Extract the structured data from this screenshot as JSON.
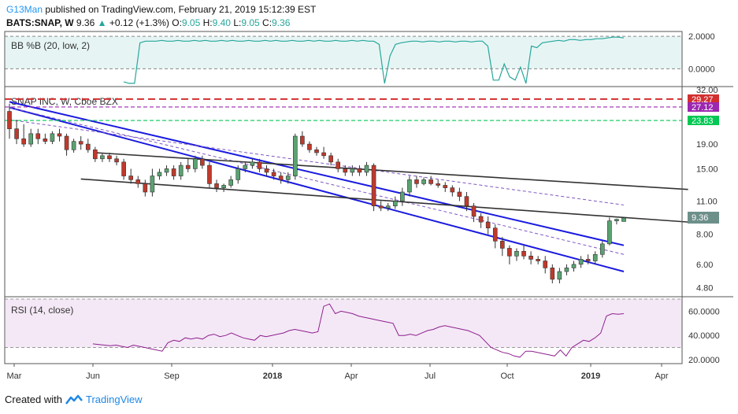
{
  "header": {
    "author": "G13Man",
    "published_text": "published on TradingView.com, February 21, 2019 15:12:39 EST",
    "symbol": "BATS:SNAP, W",
    "last": "9.36",
    "change_arrow": "▲",
    "change": "+0.12 (+1.3%)",
    "o_label": "O:",
    "o_val": "9.05",
    "h_label": "H:",
    "h_val": "9.40",
    "l_label": "L:",
    "l_val": "9.05",
    "c_label": "C:",
    "c_val": "9.36"
  },
  "footer": {
    "created_with": "Created with",
    "brand": "TradingView"
  },
  "chart_data": [
    {
      "type": "line",
      "title": "BB %B (20, low, 2)",
      "y_ticks": [
        "2.0000",
        "0.0000"
      ],
      "ylim": [
        -1,
        2.2
      ],
      "values": [
        -0.8,
        -0.9,
        -0.9,
        1.6,
        1.7,
        1.7,
        1.7,
        1.75,
        1.7,
        1.7,
        1.75,
        1.7,
        1.7,
        1.75,
        1.7,
        1.75,
        1.7,
        1.7,
        1.75,
        1.7,
        1.75,
        1.7,
        1.7,
        1.75,
        1.7,
        1.7,
        1.75,
        1.7,
        1.75,
        1.7,
        1.7,
        1.75,
        1.7,
        1.7,
        1.75,
        1.7,
        1.75,
        1.7,
        1.7,
        1.75,
        1.7,
        1.7,
        1.75,
        1.7,
        1.75,
        1.7,
        1.7,
        1.5,
        -0.9,
        0.8,
        1.5,
        1.6,
        1.65,
        1.7,
        1.7,
        1.65,
        1.7,
        1.7,
        1.65,
        1.7,
        1.7,
        1.65,
        1.7,
        1.7,
        1.65,
        1.7,
        1.7,
        1.4,
        -0.7,
        -0.7,
        0.3,
        -0.5,
        -0.7,
        0.1,
        -0.9,
        1.4,
        1.3,
        1.6,
        1.65,
        1.7,
        1.75,
        1.7,
        1.8,
        1.8,
        1.75,
        1.8,
        1.8,
        1.85,
        1.85,
        1.9,
        1.95,
        1.95,
        1.9
      ]
    },
    {
      "type": "candlestick",
      "title": "SNAP INC, W, Cboe BZX",
      "y_ticks": [
        "32.00",
        "19.00",
        "15.00",
        "11.00",
        "8.00",
        "6.00",
        "4.80"
      ],
      "price_labels": [
        "29.27",
        "27.12",
        "23.83",
        "9.36"
      ],
      "x_ticks": [
        "Mar",
        "Jun",
        "Sep",
        "2018",
        "Apr",
        "Jul",
        "Oct",
        "2019",
        "Apr"
      ],
      "candles": [
        [
          26,
          28,
          20,
          22
        ],
        [
          22,
          24,
          19,
          20
        ],
        [
          20,
          23,
          18.5,
          19
        ],
        [
          19,
          22,
          18.5,
          21
        ],
        [
          21,
          22,
          19,
          20
        ],
        [
          20,
          21,
          19,
          19.5
        ],
        [
          19.5,
          21.5,
          19,
          21
        ],
        [
          21,
          22,
          19.5,
          20.5
        ],
        [
          20.5,
          21,
          17,
          18
        ],
        [
          18,
          20,
          17.5,
          19.5
        ],
        [
          19.5,
          20.5,
          18,
          19
        ],
        [
          19,
          20,
          17.5,
          18
        ],
        [
          18,
          18.5,
          16,
          16.5
        ],
        [
          16.5,
          17.5,
          16,
          17
        ],
        [
          17,
          17.5,
          16,
          16.5
        ],
        [
          16.5,
          17,
          15.5,
          16
        ],
        [
          16,
          16.5,
          13.5,
          14
        ],
        [
          14,
          15,
          13,
          13.5
        ],
        [
          13.5,
          14,
          12.5,
          13
        ],
        [
          13,
          13.5,
          11.5,
          12
        ],
        [
          12,
          15,
          11.5,
          14
        ],
        [
          14,
          15,
          13.5,
          14.5
        ],
        [
          14.5,
          15.5,
          14,
          15
        ],
        [
          15,
          15.5,
          13.5,
          14
        ],
        [
          14,
          16,
          13.5,
          15.5
        ],
        [
          15.5,
          16.5,
          14.5,
          15
        ],
        [
          15,
          17,
          14.5,
          16.5
        ],
        [
          16.5,
          17,
          15,
          15.5
        ],
        [
          15.5,
          16,
          12.5,
          13
        ],
        [
          13,
          13.5,
          12,
          12.5
        ],
        [
          12.5,
          13,
          12,
          12.8
        ],
        [
          12.8,
          14,
          12.5,
          13.5
        ],
        [
          13.5,
          15.5,
          13,
          15
        ],
        [
          15,
          16,
          14.5,
          15.5
        ],
        [
          15.5,
          16.5,
          15,
          16
        ],
        [
          16,
          16.5,
          14.5,
          15
        ],
        [
          15,
          15.5,
          14,
          14.5
        ],
        [
          14.5,
          15,
          13.5,
          14
        ],
        [
          14,
          14.5,
          13,
          13.5
        ],
        [
          13.5,
          14.5,
          13,
          14
        ],
        [
          14,
          21,
          13.5,
          20.5
        ],
        [
          20.5,
          21.5,
          18.5,
          19
        ],
        [
          19,
          19.5,
          17.5,
          18
        ],
        [
          18,
          18.5,
          17,
          17.5
        ],
        [
          17.5,
          18.5,
          16.5,
          17
        ],
        [
          17,
          17.5,
          15.5,
          16
        ],
        [
          16,
          16.5,
          14.5,
          15
        ],
        [
          15,
          15.5,
          14,
          14.5
        ],
        [
          14.5,
          15.5,
          14,
          15
        ],
        [
          15,
          15.5,
          14,
          14.5
        ],
        [
          14.5,
          16,
          14,
          15.5
        ],
        [
          15.5,
          15.8,
          10,
          10.5
        ],
        [
          10.5,
          11,
          10,
          10.3
        ],
        [
          10.3,
          10.8,
          10,
          10.5
        ],
        [
          10.5,
          11.5,
          10.2,
          11
        ],
        [
          11,
          12.5,
          10.5,
          12
        ],
        [
          12,
          14,
          11.5,
          13.5
        ],
        [
          13.5,
          14,
          12.5,
          13
        ],
        [
          13,
          13.8,
          12.8,
          13.5
        ],
        [
          13.5,
          14,
          12.8,
          13
        ],
        [
          13,
          13.5,
          12.5,
          12.8
        ],
        [
          12.8,
          13.2,
          12,
          12.5
        ],
        [
          12.5,
          12.8,
          11.5,
          12
        ],
        [
          12,
          12.5,
          11,
          11.5
        ],
        [
          11.5,
          12,
          10,
          10.5
        ],
        [
          10.5,
          10.8,
          9,
          9.5
        ],
        [
          9.5,
          9.8,
          8.5,
          9
        ],
        [
          9,
          9.5,
          8,
          8.5
        ],
        [
          8.5,
          8.8,
          7,
          7.5
        ],
        [
          7.5,
          7.8,
          6.5,
          7
        ],
        [
          7,
          7.2,
          6,
          6.5
        ],
        [
          6.5,
          7,
          6.2,
          6.8
        ],
        [
          6.8,
          7.2,
          6.3,
          6.5
        ],
        [
          6.5,
          6.8,
          6,
          6.3
        ],
        [
          6.3,
          6.5,
          6,
          6.2
        ],
        [
          6.2,
          6.5,
          5.5,
          5.8
        ],
        [
          5.8,
          6,
          5,
          5.2
        ],
        [
          5.2,
          5.8,
          5,
          5.6
        ],
        [
          5.6,
          6,
          5.4,
          5.8
        ],
        [
          5.8,
          6.2,
          5.6,
          6
        ],
        [
          6,
          6.5,
          5.8,
          6.3
        ],
        [
          6.3,
          6.6,
          6,
          6.2
        ],
        [
          6.2,
          6.8,
          6,
          6.6
        ],
        [
          6.6,
          7.5,
          6.4,
          7.3
        ],
        [
          7.3,
          9.4,
          7.2,
          9.1
        ],
        [
          9.1,
          9.3,
          8.8,
          9.24
        ],
        [
          9.05,
          9.4,
          9.05,
          9.36
        ]
      ],
      "horizontal_lines": [
        {
          "price": 29.27,
          "color": "#d32f2f",
          "style": "dash"
        },
        {
          "price": 27.12,
          "color": "#9c27b0",
          "style": "dash"
        },
        {
          "price": 23.83,
          "color": "#00c853",
          "style": "dash"
        }
      ]
    },
    {
      "type": "line",
      "title": "RSI (14, close)",
      "y_ticks": [
        "60.0000",
        "40.0000",
        "20.0000"
      ],
      "ylim": [
        18,
        70
      ],
      "values": [
        33,
        32.5,
        32,
        31.5,
        32,
        31,
        30,
        32,
        31,
        30,
        29,
        28,
        27,
        34,
        36,
        35,
        38,
        37,
        38,
        37,
        40,
        41,
        39,
        40,
        42,
        40,
        38,
        37,
        36,
        40,
        39,
        40,
        41,
        42,
        44,
        45,
        44,
        43,
        42,
        43,
        64,
        66,
        58,
        60,
        59,
        58,
        56,
        55,
        54,
        53,
        52,
        51,
        50,
        40,
        40,
        41,
        40,
        42,
        44,
        45,
        47,
        48,
        47,
        46,
        45,
        44,
        42,
        40,
        35,
        30,
        28,
        26,
        25,
        23,
        22,
        27,
        27,
        26,
        25,
        24,
        23,
        28,
        23,
        30,
        33,
        36,
        35,
        38,
        42,
        56,
        58,
        57.5,
        58
      ]
    }
  ]
}
